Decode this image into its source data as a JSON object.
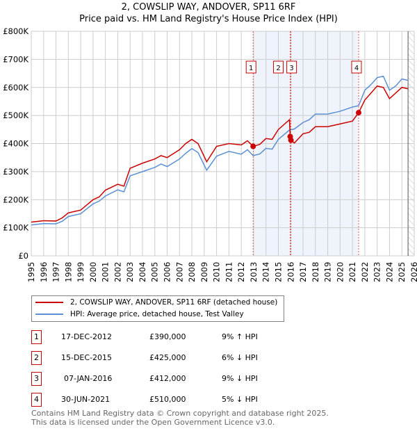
{
  "chart_data": {
    "type": "line",
    "title": "2, COWSLIP WAY, ANDOVER, SP11 6RF",
    "subtitle": "Price paid vs. HM Land Registry's House Price Index (HPI)",
    "xlim": [
      1995,
      2026
    ],
    "ylim": [
      0,
      800000
    ],
    "x_ticks": [
      "1995",
      "1996",
      "1997",
      "1998",
      "1999",
      "2000",
      "2001",
      "2002",
      "2003",
      "2004",
      "2005",
      "2006",
      "2007",
      "2008",
      "2009",
      "2010",
      "2011",
      "2012",
      "2013",
      "2014",
      "2015",
      "2016",
      "2017",
      "2018",
      "2019",
      "2020",
      "2021",
      "2022",
      "2023",
      "2024",
      "2025",
      "2026"
    ],
    "y_ticks": [
      "£0",
      "£100K",
      "£200K",
      "£300K",
      "£400K",
      "£500K",
      "£600K",
      "£700K",
      "£800K"
    ],
    "grid": true,
    "shaded_range": [
      2012.96,
      2021.5
    ],
    "hatched_from": 2025.5,
    "series": [
      {
        "name": "2, COWSLIP WAY, ANDOVER, SP11 6RF (detached house)",
        "color": "#cc0000",
        "x": [
          1995,
          1996,
          1997,
          1997.5,
          1998,
          1999,
          2000,
          2000.5,
          2001,
          2002,
          2002.5,
          2003,
          2004,
          2005,
          2005.5,
          2006,
          2007,
          2007.5,
          2008,
          2008.5,
          2009.2,
          2010,
          2011,
          2012,
          2012.5,
          2012.96,
          2013.5,
          2014,
          2014.5,
          2015,
          2015.9,
          2015.96,
          2016.02,
          2016.3,
          2017,
          2017.5,
          2018,
          2019,
          2020,
          2021,
          2021.5,
          2022,
          2022.5,
          2023,
          2023.5,
          2024,
          2024.5,
          2025,
          2025.5
        ],
        "y": [
          120000,
          125000,
          124000,
          135000,
          153000,
          163000,
          200000,
          210000,
          234000,
          255000,
          248000,
          312000,
          330000,
          345000,
          357000,
          350000,
          378000,
          400000,
          415000,
          400000,
          335000,
          390000,
          400000,
          395000,
          410000,
          390000,
          397000,
          418000,
          415000,
          450000,
          485000,
          425000,
          412000,
          402000,
          435000,
          440000,
          460000,
          460000,
          470000,
          480000,
          510000,
          555000,
          580000,
          605000,
          600000,
          560000,
          580000,
          600000,
          595000
        ]
      },
      {
        "name": "HPI: Average price, detached house, Test Valley",
        "color": "#5b8fd6",
        "x": [
          1995,
          1996,
          1997,
          1997.5,
          1998,
          1999,
          2000,
          2000.5,
          2001,
          2002,
          2002.5,
          2003,
          2004,
          2005,
          2005.5,
          2006,
          2007,
          2007.5,
          2008,
          2008.5,
          2009.2,
          2010,
          2011,
          2012,
          2012.5,
          2012.96,
          2013.5,
          2014,
          2014.5,
          2015,
          2015.9,
          2016.3,
          2017,
          2017.5,
          2018,
          2019,
          2020,
          2021,
          2021.5,
          2022,
          2022.5,
          2023,
          2023.5,
          2024,
          2024.5,
          2025,
          2025.5
        ],
        "y": [
          110000,
          115000,
          114000,
          123000,
          140000,
          150000,
          185000,
          195000,
          213000,
          235000,
          228000,
          285000,
          300000,
          315000,
          327000,
          318000,
          345000,
          365000,
          382000,
          368000,
          305000,
          355000,
          372000,
          362000,
          378000,
          357000,
          363000,
          383000,
          380000,
          415000,
          448000,
          452000,
          475000,
          485000,
          505000,
          505000,
          515000,
          530000,
          535000,
          590000,
          610000,
          635000,
          640000,
          590000,
          605000,
          630000,
          625000
        ]
      }
    ],
    "sales": [
      {
        "num": "1",
        "x": 2012.96,
        "y": 390000,
        "date": "17-DEC-2012",
        "price": "£390,000",
        "hpi": "9% ↑ HPI"
      },
      {
        "num": "2",
        "x": 2015.96,
        "y": 425000,
        "date": "15-DEC-2015",
        "price": "£425,000",
        "hpi": "6% ↓ HPI"
      },
      {
        "num": "3",
        "x": 2016.02,
        "y": 412000,
        "date": "07-JAN-2016",
        "price": "£412,000",
        "hpi": "9% ↓ HPI"
      },
      {
        "num": "4",
        "x": 2021.5,
        "y": 510000,
        "date": "30-JUN-2021",
        "price": "£510,000",
        "hpi": "5% ↓ HPI"
      }
    ]
  },
  "footer": {
    "line1": "Contains HM Land Registry data © Crown copyright and database right 2025.",
    "line2": "This data is licensed under the Open Government Licence v3.0."
  }
}
